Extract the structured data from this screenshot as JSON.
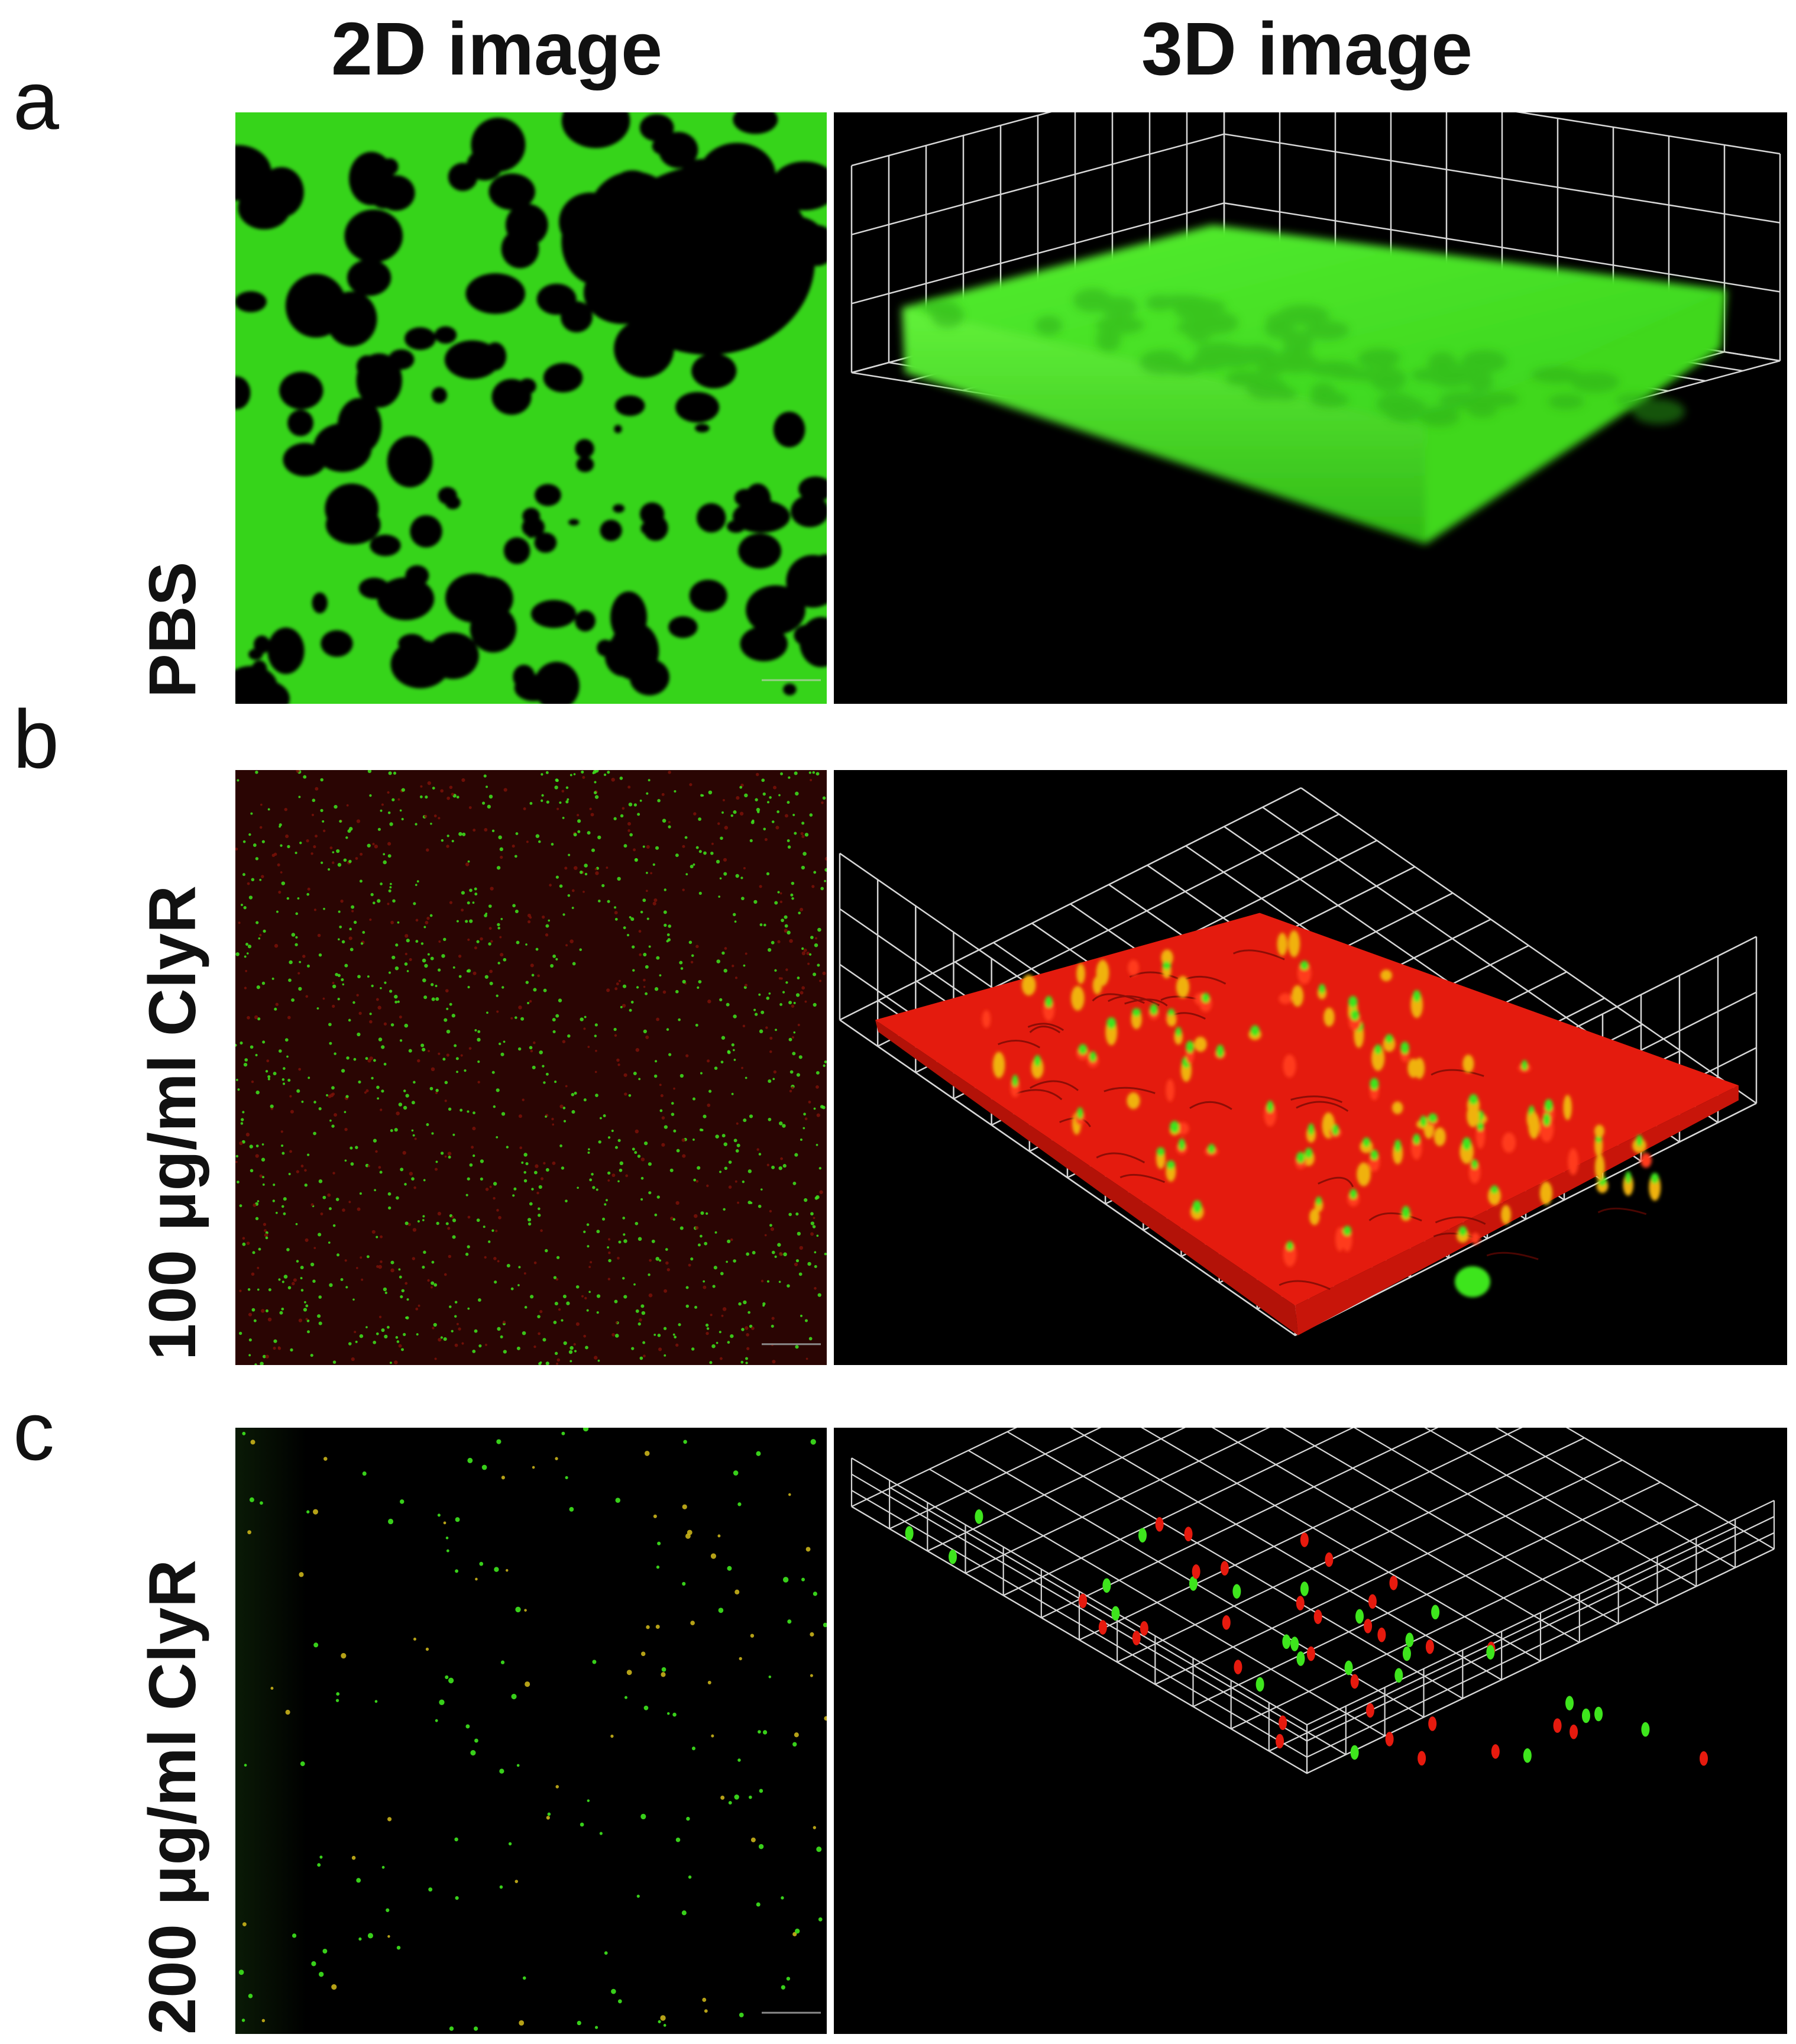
{
  "headers": {
    "col_2d": "2D image",
    "col_3d": "3D image"
  },
  "rows": [
    {
      "letter": "a",
      "label": "PBS"
    },
    {
      "letter": "b",
      "label": "100 μg/ml ClyR"
    },
    {
      "letter": "c",
      "label": "200 μg/ml ClyR"
    }
  ],
  "colors": {
    "background": "#000000",
    "live_green": "#3ee51d",
    "dead_red": "#e61a0e",
    "grid": "#d8d8d8"
  }
}
